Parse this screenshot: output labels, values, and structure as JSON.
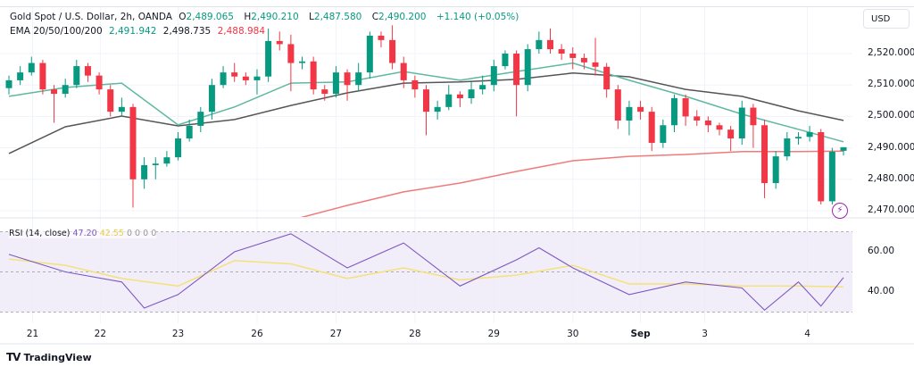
{
  "header": {
    "symbol": "Gold Spot / U.S. Dollar, 2h, OANDA",
    "open_label": "O",
    "open": "2,489.065",
    "high_label": "H",
    "high": "2,490.210",
    "low_label": "L",
    "low": "2,487.580",
    "close_label": "C",
    "close": "2,490.200",
    "change": "+1.140 (+0.05%)",
    "ema_label": "EMA 20/50/100/200",
    "ema20": "2,491.942",
    "ema50": "2,498.735",
    "ema200": "2,488.984"
  },
  "rsi_legend": {
    "label": "RSI (14, close)",
    "rsi": "47.20",
    "ma": "42.55",
    "extra": [
      "0",
      "0",
      "0",
      "0"
    ]
  },
  "currency_button": "USD",
  "footer": {
    "brand": "TradingView"
  },
  "icons": {
    "alert": "lightning-icon",
    "logo": "tradingview-logo-icon"
  },
  "colors": {
    "up": "#089981",
    "down": "#f23645",
    "ema20": "#5fb8a0",
    "ema50": "#555555",
    "ema200": "#f07a7a",
    "rsi": "#7e57c2",
    "rsi_ma": "#f5e17a",
    "rsi_band": "#ede7f6"
  },
  "chart_data": {
    "type": "candlestick",
    "price_axis": {
      "ticks": [
        "2,520.000",
        "2,510.000",
        "2,500.000",
        "2,490.000",
        "2,480.000",
        "2,470.000"
      ],
      "tick_values": [
        2520,
        2510,
        2500,
        2490,
        2480,
        2470
      ],
      "range": [
        2466,
        2536
      ]
    },
    "x_axis": [
      {
        "label": "21",
        "at_candle": 3.1
      },
      {
        "label": "22",
        "at_candle": 9.1
      },
      {
        "label": "23",
        "at_candle": 16
      },
      {
        "label": "26",
        "at_candle": 23
      },
      {
        "label": "27",
        "at_candle": 30
      },
      {
        "label": "28",
        "at_candle": 37
      },
      {
        "label": "29",
        "at_candle": 44
      },
      {
        "label": "30",
        "at_candle": 51
      },
      {
        "label": "Sep",
        "at_candle": 57,
        "bold": true
      },
      {
        "label": "3",
        "at_candle": 62.7
      },
      {
        "label": "4",
        "at_candle": 71.8
      }
    ],
    "ohlc": [
      [
        2509,
        2513,
        2507,
        2511.5
      ],
      [
        2511.5,
        2516,
        2510,
        2514
      ],
      [
        2514,
        2519,
        2513,
        2517
      ],
      [
        2517,
        2518,
        2507,
        2508.6
      ],
      [
        2508.6,
        2510,
        2498,
        2507.2
      ],
      [
        2507.2,
        2512,
        2506,
        2510
      ],
      [
        2510,
        2518,
        2509,
        2516
      ],
      [
        2516,
        2517,
        2511,
        2513
      ],
      [
        2513,
        2514,
        2507,
        2508.6
      ],
      [
        2508.6,
        2510,
        2500,
        2501.5
      ],
      [
        2501.5,
        2506,
        2500,
        2503
      ],
      [
        2503,
        2504,
        2471,
        2480
      ],
      [
        2480,
        2487,
        2477,
        2484.5
      ],
      [
        2484.5,
        2487,
        2480,
        2485
      ],
      [
        2485,
        2489,
        2484,
        2487
      ],
      [
        2487,
        2495,
        2486,
        2493
      ],
      [
        2493,
        2499,
        2492,
        2497
      ],
      [
        2497,
        2503,
        2495,
        2501.5
      ],
      [
        2501.5,
        2512,
        2499,
        2510
      ],
      [
        2510,
        2516,
        2509,
        2514
      ],
      [
        2514,
        2517,
        2511,
        2512.7
      ],
      [
        2512.7,
        2514,
        2510,
        2511.5
      ],
      [
        2511.5,
        2515,
        2507,
        2512.7
      ],
      [
        2512.7,
        2528,
        2511,
        2524
      ],
      [
        2524,
        2527,
        2521,
        2523
      ],
      [
        2523,
        2526,
        2508,
        2517
      ],
      [
        2517,
        2519,
        2515,
        2517.5
      ],
      [
        2517.5,
        2519,
        2507,
        2508.6
      ],
      [
        2508.6,
        2510,
        2505,
        2507.2
      ],
      [
        2507.2,
        2516,
        2506,
        2514
      ],
      [
        2514,
        2515,
        2505,
        2510
      ],
      [
        2510,
        2517,
        2508,
        2514
      ],
      [
        2514,
        2527,
        2512,
        2525.7
      ],
      [
        2525.7,
        2527,
        2522,
        2524.3
      ],
      [
        2524.3,
        2529,
        2515,
        2517
      ],
      [
        2517,
        2519,
        2509,
        2511.5
      ],
      [
        2511.5,
        2513,
        2506,
        2508.6
      ],
      [
        2508.6,
        2510,
        2494,
        2501.5
      ],
      [
        2501.5,
        2505,
        2499,
        2503
      ],
      [
        2503,
        2510,
        2502,
        2507
      ],
      [
        2507,
        2508,
        2503,
        2505.8
      ],
      [
        2505.8,
        2511,
        2504,
        2508.6
      ],
      [
        2508.6,
        2513,
        2507,
        2510
      ],
      [
        2510,
        2518,
        2508,
        2516
      ],
      [
        2516,
        2521,
        2515,
        2520
      ],
      [
        2520,
        2521,
        2500,
        2510
      ],
      [
        2510,
        2523,
        2508,
        2521.4
      ],
      [
        2521.4,
        2527,
        2520,
        2524.3
      ],
      [
        2524.3,
        2528,
        2520,
        2521.4
      ],
      [
        2521.4,
        2523,
        2518,
        2520
      ],
      [
        2520,
        2522,
        2515,
        2518.6
      ],
      [
        2518.6,
        2520,
        2515,
        2517.2
      ],
      [
        2517.2,
        2525,
        2513,
        2515.8
      ],
      [
        2515.8,
        2517,
        2506,
        2508.6
      ],
      [
        2508.6,
        2510,
        2496,
        2498.7
      ],
      [
        2498.7,
        2505,
        2494,
        2503
      ],
      [
        2503,
        2505,
        2499,
        2501.5
      ],
      [
        2501.5,
        2503,
        2489,
        2491.6
      ],
      [
        2491.6,
        2499,
        2490,
        2497.2
      ],
      [
        2497.2,
        2507,
        2495,
        2505.8
      ],
      [
        2505.8,
        2507,
        2497,
        2500
      ],
      [
        2500,
        2502,
        2497,
        2498.7
      ],
      [
        2498.7,
        2500,
        2495,
        2497.2
      ],
      [
        2497.2,
        2498,
        2494,
        2495.8
      ],
      [
        2495.8,
        2497,
        2489,
        2493
      ],
      [
        2493,
        2505,
        2491,
        2502.8
      ],
      [
        2502.8,
        2504,
        2490,
        2497.2
      ],
      [
        2497.2,
        2499,
        2474,
        2478.8
      ],
      [
        2478.8,
        2489,
        2477,
        2487.3
      ],
      [
        2487.3,
        2495,
        2486,
        2493
      ],
      [
        2493,
        2495,
        2491,
        2493.5
      ],
      [
        2493.5,
        2497,
        2492,
        2495
      ],
      [
        2495,
        2496,
        2472,
        2473
      ],
      [
        2473,
        2490,
        2472,
        2488.8
      ],
      [
        2489.065,
        2490.21,
        2487.58,
        2490.2
      ]
    ],
    "ema": {
      "ema20": [
        {
          "i": 1,
          "v": 2506.4
        },
        {
          "i": 6,
          "v": 2509.2
        },
        {
          "i": 11,
          "v": 2510.6
        },
        {
          "i": 16,
          "v": 2497.3
        },
        {
          "i": 21,
          "v": 2503
        },
        {
          "i": 26,
          "v": 2510.6
        },
        {
          "i": 31,
          "v": 2511
        },
        {
          "i": 36,
          "v": 2514.3
        },
        {
          "i": 41,
          "v": 2511.5
        },
        {
          "i": 46,
          "v": 2514.3
        },
        {
          "i": 51,
          "v": 2517
        },
        {
          "i": 56,
          "v": 2511.5
        },
        {
          "i": 61,
          "v": 2506.4
        },
        {
          "i": 66,
          "v": 2500.7
        },
        {
          "i": 71,
          "v": 2495.9
        },
        {
          "i": 75,
          "v": 2491.942
        }
      ],
      "ema50": [
        {
          "i": 1,
          "v": 2488.2
        },
        {
          "i": 6,
          "v": 2496.7
        },
        {
          "i": 11,
          "v": 2500.1
        },
        {
          "i": 16,
          "v": 2497
        },
        {
          "i": 21,
          "v": 2499
        },
        {
          "i": 26,
          "v": 2503.5
        },
        {
          "i": 31,
          "v": 2507.5
        },
        {
          "i": 36,
          "v": 2510.6
        },
        {
          "i": 41,
          "v": 2511
        },
        {
          "i": 46,
          "v": 2511.8
        },
        {
          "i": 51,
          "v": 2513.8
        },
        {
          "i": 56,
          "v": 2512.6
        },
        {
          "i": 61,
          "v": 2508.6
        },
        {
          "i": 66,
          "v": 2506.4
        },
        {
          "i": 71,
          "v": 2501.8
        },
        {
          "i": 75,
          "v": 2498.735
        }
      ],
      "ema200": [
        {
          "i": 21,
          "v": 2463
        },
        {
          "i": 26,
          "v": 2467
        },
        {
          "i": 31,
          "v": 2471.7
        },
        {
          "i": 36,
          "v": 2476
        },
        {
          "i": 41,
          "v": 2478.8
        },
        {
          "i": 46,
          "v": 2482.5
        },
        {
          "i": 51,
          "v": 2485.9
        },
        {
          "i": 56,
          "v": 2487.3
        },
        {
          "i": 61,
          "v": 2487.9
        },
        {
          "i": 66,
          "v": 2488.8
        },
        {
          "i": 71,
          "v": 2488.8
        },
        {
          "i": 75,
          "v": 2488.984
        }
      ]
    },
    "rsi": {
      "axis_ticks": [
        "60.00",
        "40.00"
      ],
      "tick_values": [
        60,
        40
      ],
      "bands": [
        70,
        50,
        30
      ],
      "rsi": [
        {
          "i": 1,
          "v": 58.7
        },
        {
          "i": 6,
          "v": 50
        },
        {
          "i": 11,
          "v": 45
        },
        {
          "i": 13,
          "v": 32
        },
        {
          "i": 16,
          "v": 38.7
        },
        {
          "i": 21,
          "v": 60
        },
        {
          "i": 26,
          "v": 69
        },
        {
          "i": 31,
          "v": 52
        },
        {
          "i": 36,
          "v": 64.4
        },
        {
          "i": 41,
          "v": 43
        },
        {
          "i": 46,
          "v": 56
        },
        {
          "i": 48,
          "v": 62
        },
        {
          "i": 51,
          "v": 52
        },
        {
          "i": 56,
          "v": 38.7
        },
        {
          "i": 61,
          "v": 45
        },
        {
          "i": 66,
          "v": 42
        },
        {
          "i": 68,
          "v": 31
        },
        {
          "i": 71,
          "v": 45
        },
        {
          "i": 73,
          "v": 33
        },
        {
          "i": 75,
          "v": 47.2
        }
      ],
      "ma": [
        {
          "i": 1,
          "v": 56.4
        },
        {
          "i": 6,
          "v": 53.3
        },
        {
          "i": 11,
          "v": 46.7
        },
        {
          "i": 16,
          "v": 43
        },
        {
          "i": 21,
          "v": 55.6
        },
        {
          "i": 26,
          "v": 54
        },
        {
          "i": 31,
          "v": 46.7
        },
        {
          "i": 36,
          "v": 52
        },
        {
          "i": 41,
          "v": 46
        },
        {
          "i": 46,
          "v": 48.4
        },
        {
          "i": 51,
          "v": 53.3
        },
        {
          "i": 56,
          "v": 44
        },
        {
          "i": 61,
          "v": 44
        },
        {
          "i": 66,
          "v": 43
        },
        {
          "i": 71,
          "v": 43
        },
        {
          "i": 75,
          "v": 42.55
        }
      ]
    }
  }
}
